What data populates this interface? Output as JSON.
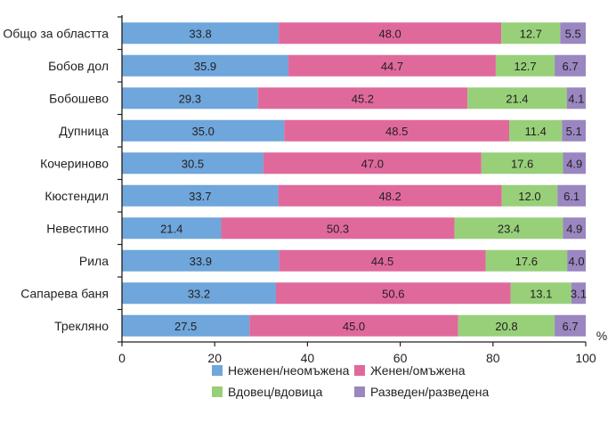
{
  "chart_data": {
    "type": "bar",
    "orientation": "horizontal",
    "stacked": true,
    "categories": [
      "Общо за областта",
      "Бобов дол",
      "Бобошево",
      "Дупница",
      "Кочериново",
      "Кюстендил",
      "Невестино",
      "Рила",
      "Сапарева баня",
      "Трекляно"
    ],
    "series": [
      {
        "name": "Неженен/неомъжена",
        "color": "#6fa6db",
        "values": [
          33.8,
          35.9,
          29.3,
          35.0,
          30.5,
          33.7,
          21.4,
          33.9,
          33.2,
          27.5
        ]
      },
      {
        "name": "Женен/омъжена",
        "color": "#e0699c",
        "values": [
          48.0,
          44.7,
          45.2,
          48.5,
          47.0,
          48.2,
          50.3,
          44.5,
          50.6,
          45.0
        ]
      },
      {
        "name": "Вдовец/вдовица",
        "color": "#98d07a",
        "values": [
          12.7,
          12.7,
          21.4,
          11.4,
          17.6,
          12.0,
          23.4,
          17.6,
          13.1,
          20.8
        ]
      },
      {
        "name": "Разведен/разведена",
        "color": "#9a86c0",
        "values": [
          5.5,
          6.7,
          4.1,
          5.1,
          4.9,
          6.1,
          4.9,
          4.0,
          3.1,
          6.7
        ]
      }
    ],
    "xlim": [
      0,
      100
    ],
    "xticks": [
      "0",
      "20",
      "40",
      "60",
      "80",
      "100"
    ],
    "unit_label": "%",
    "legend_position": "bottom",
    "grid": false
  }
}
